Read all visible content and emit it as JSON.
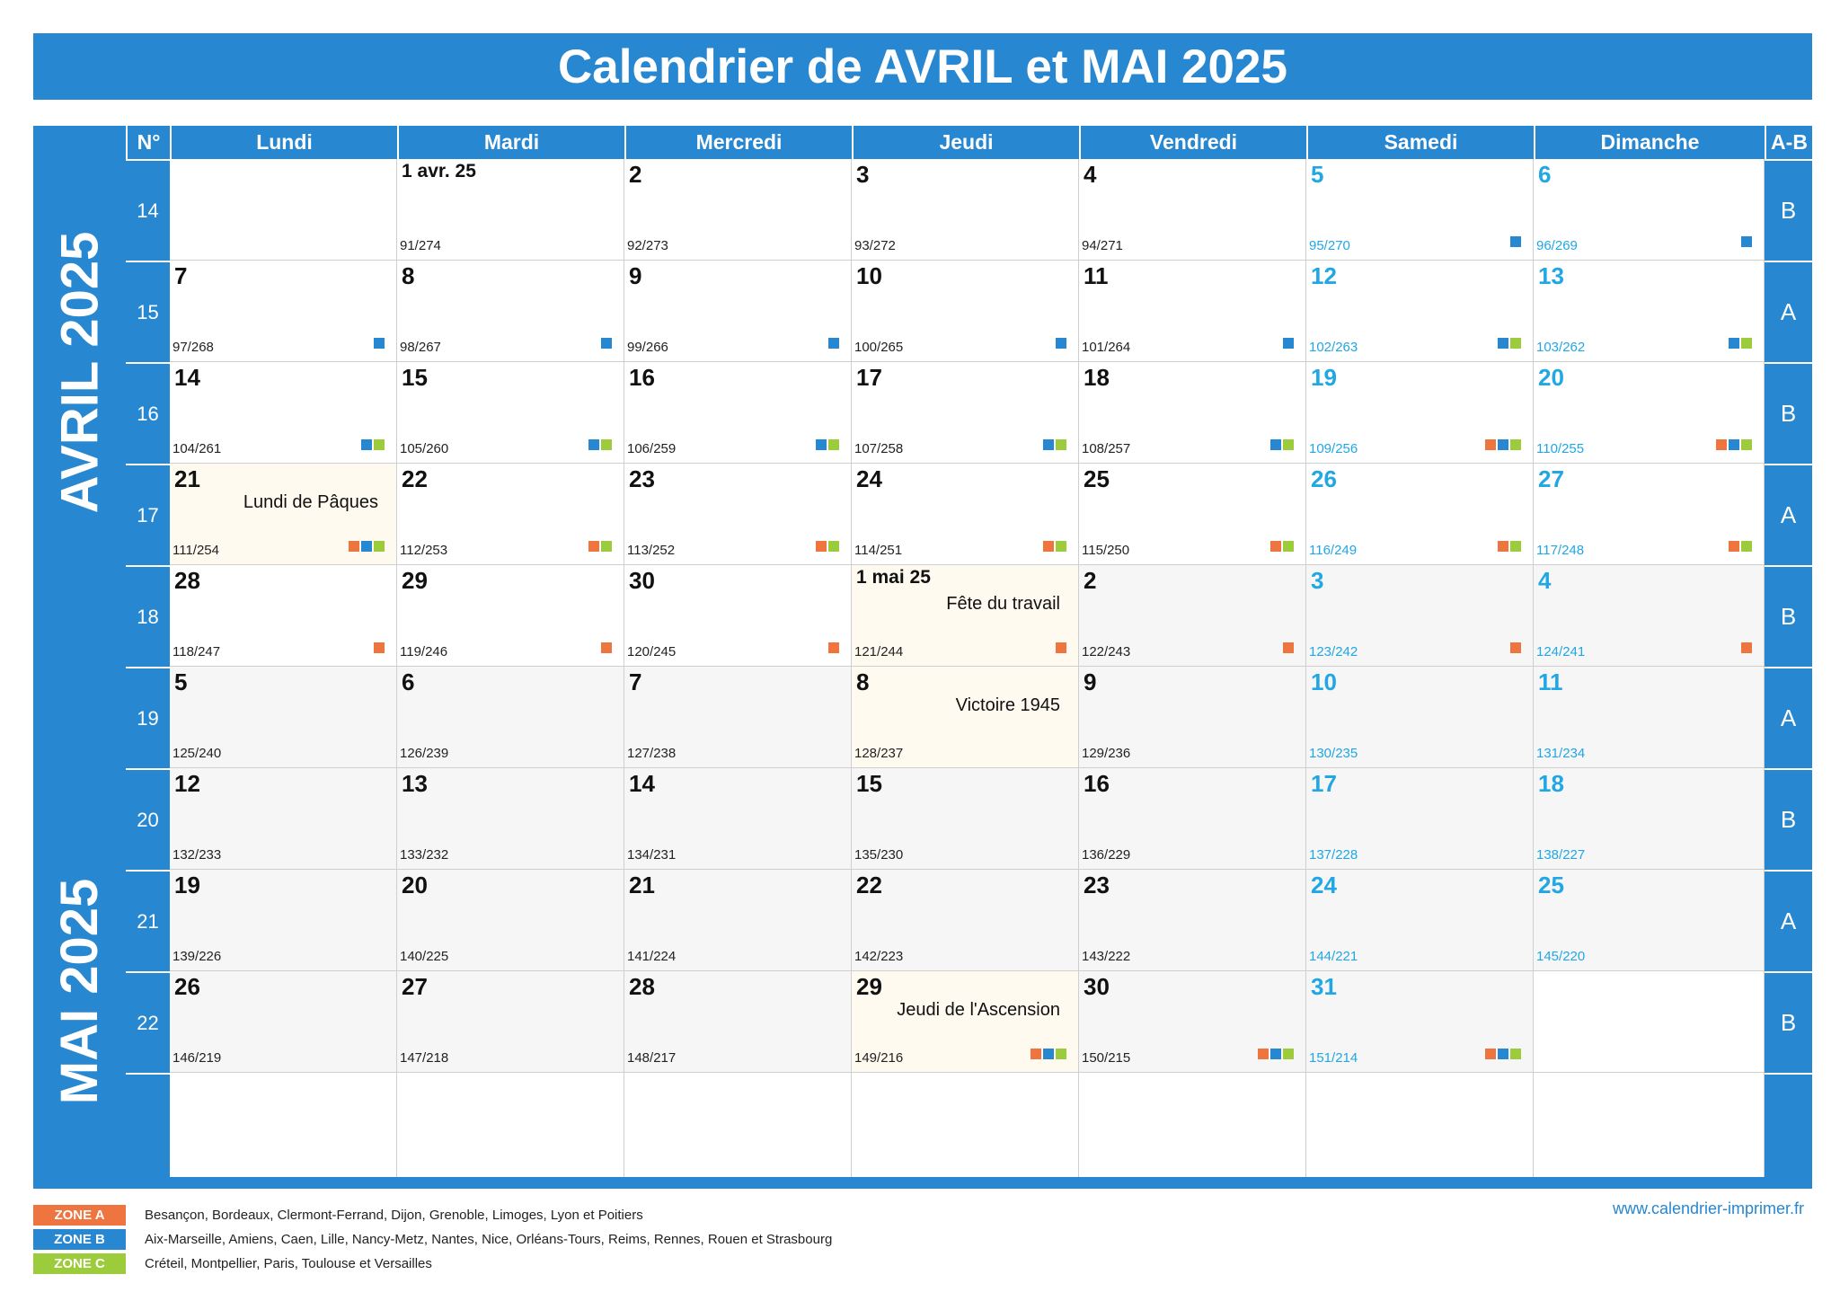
{
  "title": "Calendrier de AVRIL et MAI 2025",
  "header": {
    "week_label": "N°",
    "days": [
      "Lundi",
      "Mardi",
      "Mercredi",
      "Jeudi",
      "Vendredi",
      "Samedi",
      "Dimanche"
    ],
    "ab_label": "A-B"
  },
  "months": [
    "AVRIL 2025",
    "MAI 2025"
  ],
  "zone_colors": {
    "A": "#ee7540",
    "B": "#2787d0",
    "C": "#9ccb3b"
  },
  "weeks": [
    {
      "num": "14",
      "ab": "B",
      "days": [
        null,
        {
          "label": "1 avr. 25",
          "count": "91/274",
          "zones": []
        },
        {
          "label": "2",
          "count": "92/273",
          "zones": []
        },
        {
          "label": "3",
          "count": "93/272",
          "zones": []
        },
        {
          "label": "4",
          "count": "94/271",
          "zones": []
        },
        {
          "label": "5",
          "count": "95/270",
          "zones": [
            "B"
          ]
        },
        {
          "label": "6",
          "count": "96/269",
          "zones": [
            "B"
          ]
        }
      ]
    },
    {
      "num": "15",
      "ab": "A",
      "days": [
        {
          "label": "7",
          "count": "97/268",
          "zones": [
            "B"
          ]
        },
        {
          "label": "8",
          "count": "98/267",
          "zones": [
            "B"
          ]
        },
        {
          "label": "9",
          "count": "99/266",
          "zones": [
            "B"
          ]
        },
        {
          "label": "10",
          "count": "100/265",
          "zones": [
            "B"
          ]
        },
        {
          "label": "11",
          "count": "101/264",
          "zones": [
            "B"
          ]
        },
        {
          "label": "12",
          "count": "102/263",
          "zones": [
            "B",
            "C"
          ]
        },
        {
          "label": "13",
          "count": "103/262",
          "zones": [
            "B",
            "C"
          ]
        }
      ]
    },
    {
      "num": "16",
      "ab": "B",
      "days": [
        {
          "label": "14",
          "count": "104/261",
          "zones": [
            "B",
            "C"
          ]
        },
        {
          "label": "15",
          "count": "105/260",
          "zones": [
            "B",
            "C"
          ]
        },
        {
          "label": "16",
          "count": "106/259",
          "zones": [
            "B",
            "C"
          ]
        },
        {
          "label": "17",
          "count": "107/258",
          "zones": [
            "B",
            "C"
          ]
        },
        {
          "label": "18",
          "count": "108/257",
          "zones": [
            "B",
            "C"
          ]
        },
        {
          "label": "19",
          "count": "109/256",
          "zones": [
            "A",
            "B",
            "C"
          ]
        },
        {
          "label": "20",
          "count": "110/255",
          "zones": [
            "A",
            "B",
            "C"
          ]
        }
      ]
    },
    {
      "num": "17",
      "ab": "A",
      "days": [
        {
          "label": "21",
          "count": "111/254",
          "zones": [
            "A",
            "B",
            "C"
          ],
          "holiday": "Lundi de Pâques"
        },
        {
          "label": "22",
          "count": "112/253",
          "zones": [
            "A",
            "C"
          ]
        },
        {
          "label": "23",
          "count": "113/252",
          "zones": [
            "A",
            "C"
          ]
        },
        {
          "label": "24",
          "count": "114/251",
          "zones": [
            "A",
            "C"
          ]
        },
        {
          "label": "25",
          "count": "115/250",
          "zones": [
            "A",
            "C"
          ]
        },
        {
          "label": "26",
          "count": "116/249",
          "zones": [
            "A",
            "C"
          ]
        },
        {
          "label": "27",
          "count": "117/248",
          "zones": [
            "A",
            "C"
          ]
        }
      ]
    },
    {
      "num": "18",
      "ab": "B",
      "days": [
        {
          "label": "28",
          "count": "118/247",
          "zones": [
            "A"
          ]
        },
        {
          "label": "29",
          "count": "119/246",
          "zones": [
            "A"
          ]
        },
        {
          "label": "30",
          "count": "120/245",
          "zones": [
            "A"
          ]
        },
        {
          "label": "1 mai 25",
          "count": "121/244",
          "zones": [
            "A"
          ],
          "holiday": "Fête du travail"
        },
        {
          "label": "2",
          "count": "122/243",
          "zones": [
            "A"
          ],
          "grey": true
        },
        {
          "label": "3",
          "count": "123/242",
          "zones": [
            "A"
          ],
          "grey": true
        },
        {
          "label": "4",
          "count": "124/241",
          "zones": [
            "A"
          ],
          "grey": true
        }
      ]
    },
    {
      "num": "19",
      "ab": "A",
      "days": [
        {
          "label": "5",
          "count": "125/240",
          "zones": [],
          "grey": true
        },
        {
          "label": "6",
          "count": "126/239",
          "zones": [],
          "grey": true
        },
        {
          "label": "7",
          "count": "127/238",
          "zones": [],
          "grey": true
        },
        {
          "label": "8",
          "count": "128/237",
          "zones": [],
          "holiday": "Victoire 1945"
        },
        {
          "label": "9",
          "count": "129/236",
          "zones": [],
          "grey": true
        },
        {
          "label": "10",
          "count": "130/235",
          "zones": [],
          "grey": true
        },
        {
          "label": "11",
          "count": "131/234",
          "zones": [],
          "grey": true
        }
      ]
    },
    {
      "num": "20",
      "ab": "B",
      "days": [
        {
          "label": "12",
          "count": "132/233",
          "zones": [],
          "grey": true
        },
        {
          "label": "13",
          "count": "133/232",
          "zones": [],
          "grey": true
        },
        {
          "label": "14",
          "count": "134/231",
          "zones": [],
          "grey": true
        },
        {
          "label": "15",
          "count": "135/230",
          "zones": [],
          "grey": true
        },
        {
          "label": "16",
          "count": "136/229",
          "zones": [],
          "grey": true
        },
        {
          "label": "17",
          "count": "137/228",
          "zones": [],
          "grey": true
        },
        {
          "label": "18",
          "count": "138/227",
          "zones": [],
          "grey": true
        }
      ]
    },
    {
      "num": "21",
      "ab": "A",
      "days": [
        {
          "label": "19",
          "count": "139/226",
          "zones": [],
          "grey": true
        },
        {
          "label": "20",
          "count": "140/225",
          "zones": [],
          "grey": true
        },
        {
          "label": "21",
          "count": "141/224",
          "zones": [],
          "grey": true
        },
        {
          "label": "22",
          "count": "142/223",
          "zones": [],
          "grey": true
        },
        {
          "label": "23",
          "count": "143/222",
          "zones": [],
          "grey": true
        },
        {
          "label": "24",
          "count": "144/221",
          "zones": [],
          "grey": true
        },
        {
          "label": "25",
          "count": "145/220",
          "zones": [],
          "grey": true
        }
      ]
    },
    {
      "num": "22",
      "ab": "B",
      "days": [
        {
          "label": "26",
          "count": "146/219",
          "zones": [],
          "grey": true
        },
        {
          "label": "27",
          "count": "147/218",
          "zones": [],
          "grey": true
        },
        {
          "label": "28",
          "count": "148/217",
          "zones": [],
          "grey": true
        },
        {
          "label": "29",
          "count": "149/216",
          "zones": [
            "A",
            "B",
            "C"
          ],
          "holiday": "Jeudi de l'Ascension"
        },
        {
          "label": "30",
          "count": "150/215",
          "zones": [
            "A",
            "B",
            "C"
          ],
          "grey": true
        },
        {
          "label": "31",
          "count": "151/214",
          "zones": [
            "A",
            "B",
            "C"
          ],
          "grey": true
        },
        null
      ]
    }
  ],
  "legend": [
    {
      "zone": "A",
      "label": "ZONE A",
      "text": "Besançon, Bordeaux, Clermont-Ferrand, Dijon, Grenoble, Limoges, Lyon et Poitiers"
    },
    {
      "zone": "B",
      "label": "ZONE B",
      "text": "Aix-Marseille, Amiens, Caen, Lille, Nancy-Metz, Nantes, Nice, Orléans-Tours, Reims, Rennes, Rouen et Strasbourg"
    },
    {
      "zone": "C",
      "label": "ZONE C",
      "text": "Créteil, Montpellier, Paris, Toulouse et Versailles"
    }
  ],
  "website": "www.calendrier-imprimer.fr"
}
